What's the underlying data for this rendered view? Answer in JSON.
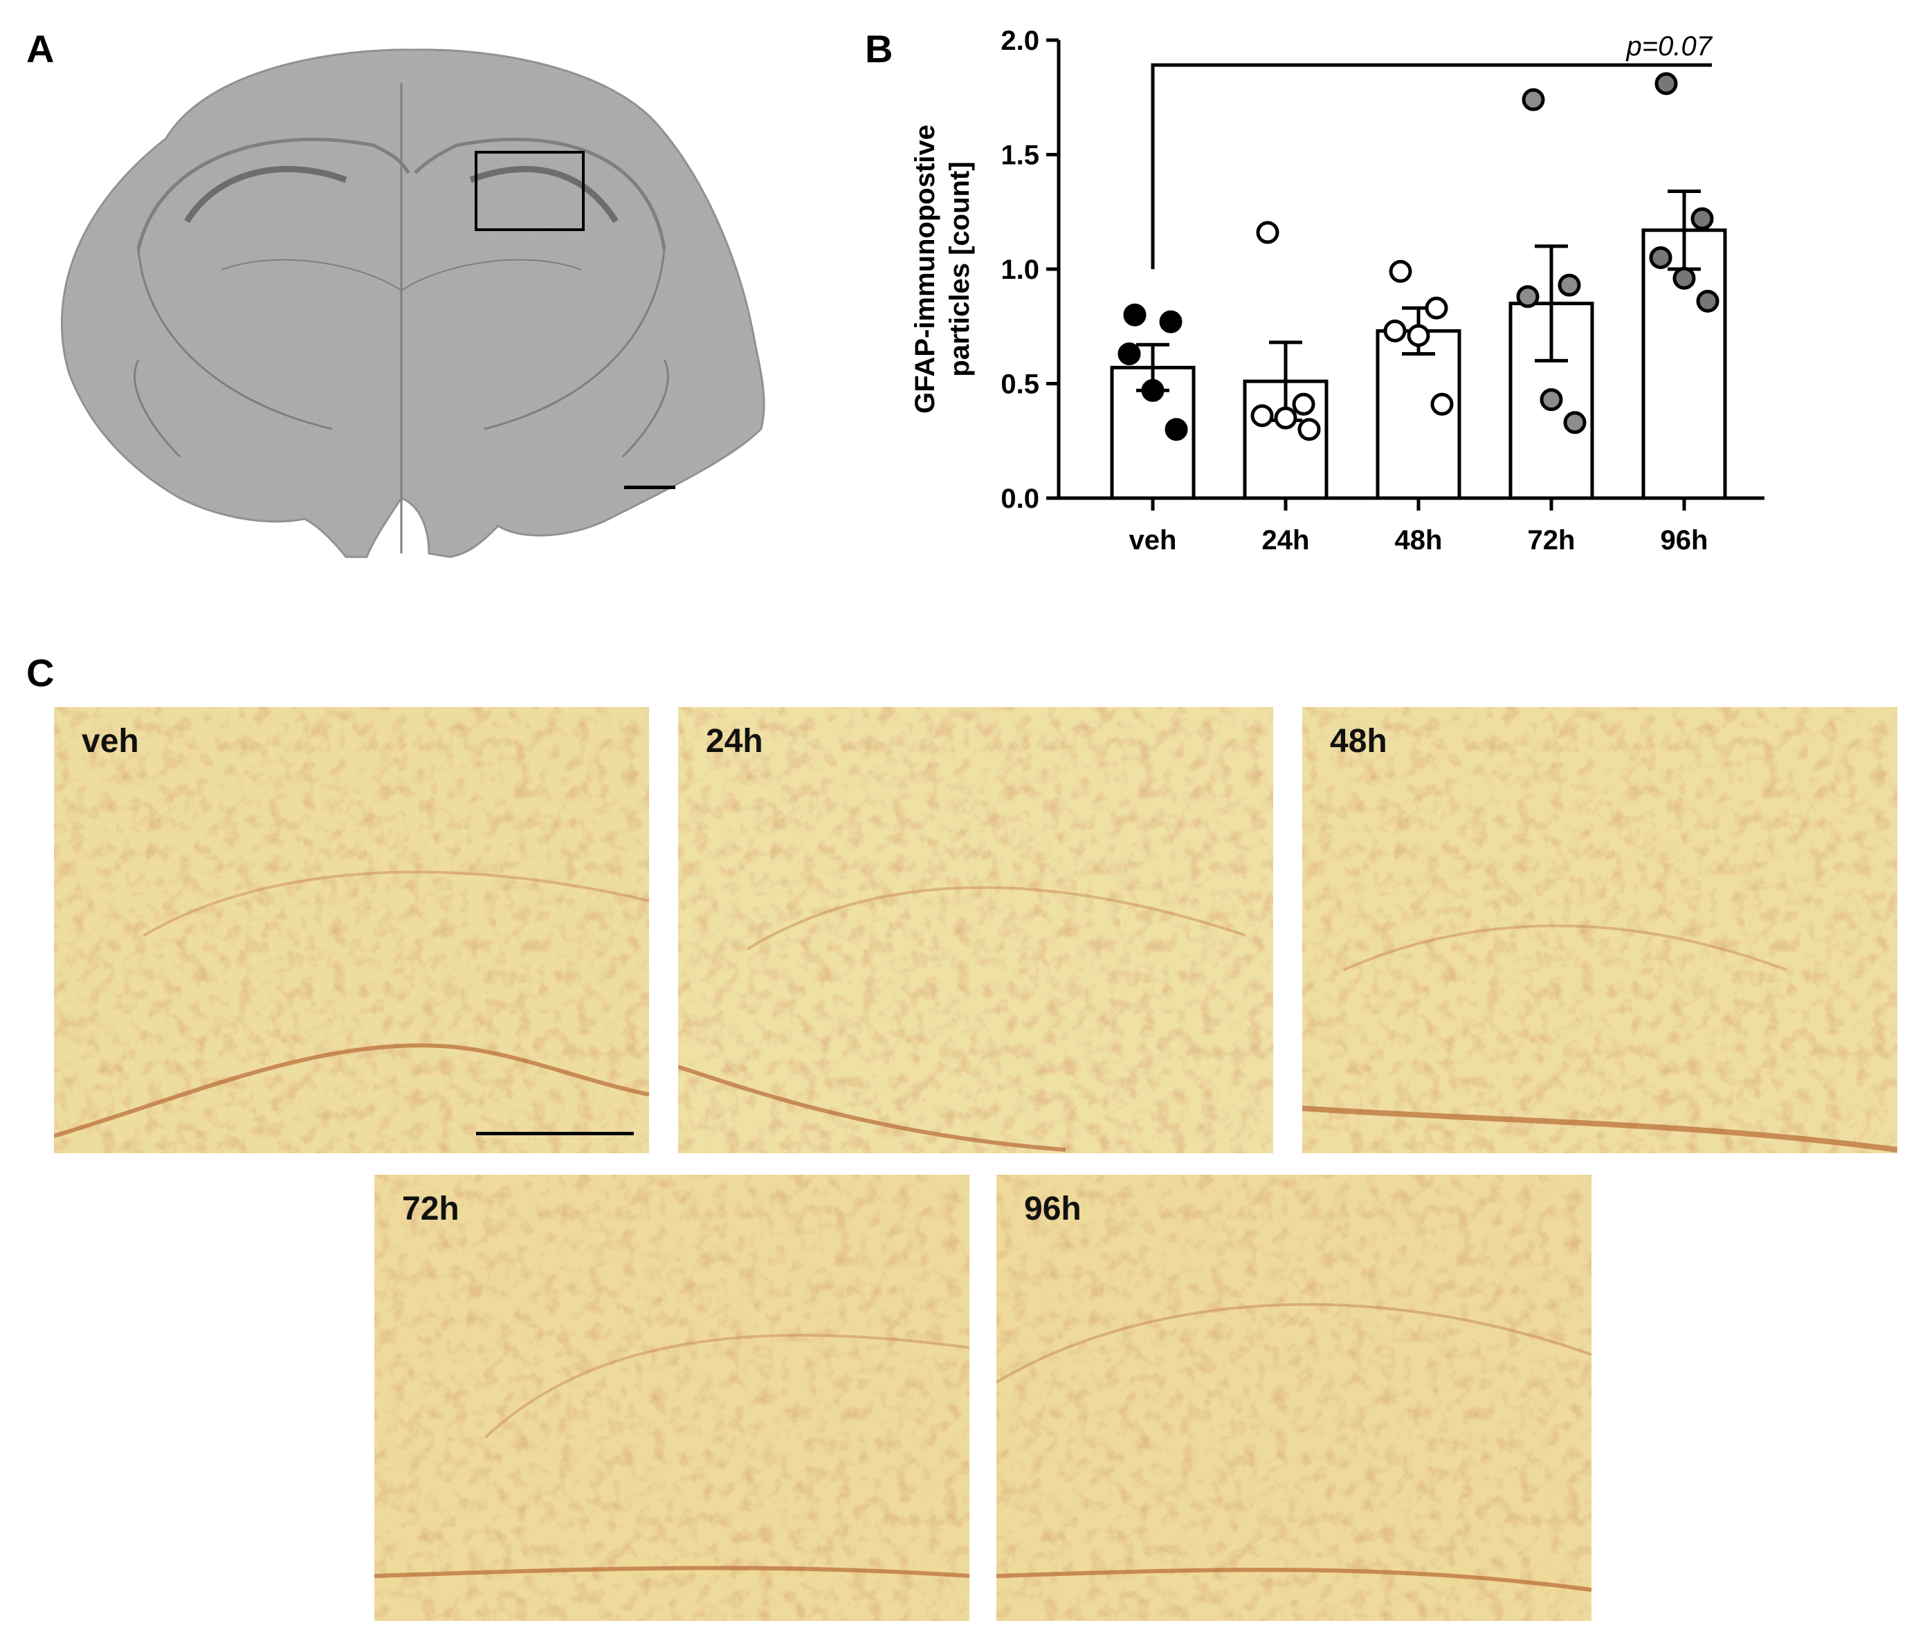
{
  "panels": {
    "a": "A",
    "b": "B",
    "c": "C"
  },
  "chart_data": {
    "type": "bar",
    "ylabel_line1": "GFAP-immunopostive",
    "ylabel_line2": "particles [count]",
    "xlabel": "",
    "categories": [
      "veh",
      "24h",
      "48h",
      "72h",
      "96h"
    ],
    "values": [
      0.57,
      0.51,
      0.73,
      0.85,
      1.17
    ],
    "sem": [
      0.1,
      0.17,
      0.1,
      0.25,
      0.17
    ],
    "points": [
      [
        0.8,
        0.77,
        0.63,
        0.47,
        0.3
      ],
      [
        1.16,
        0.41,
        0.36,
        0.35,
        0.3
      ],
      [
        0.99,
        0.83,
        0.73,
        0.71,
        0.41
      ],
      [
        1.74,
        0.93,
        0.88,
        0.43,
        0.33
      ],
      [
        1.81,
        1.22,
        1.05,
        0.96,
        0.86
      ]
    ],
    "point_colors": [
      "#000000",
      "#ffffff",
      "#ffffff",
      "#8c8c8c",
      "#777777"
    ],
    "ylim": [
      0,
      2.0
    ],
    "yticks": [
      "0.0",
      "0.5",
      "1.0",
      "1.5",
      "2.0"
    ],
    "annotation": "p=0.07",
    "annotation_from": "veh",
    "annotation_to": "96h"
  },
  "micrographs": [
    {
      "label": "veh"
    },
    {
      "label": "24h"
    },
    {
      "label": "48h"
    },
    {
      "label": "72h"
    },
    {
      "label": "96h"
    }
  ]
}
